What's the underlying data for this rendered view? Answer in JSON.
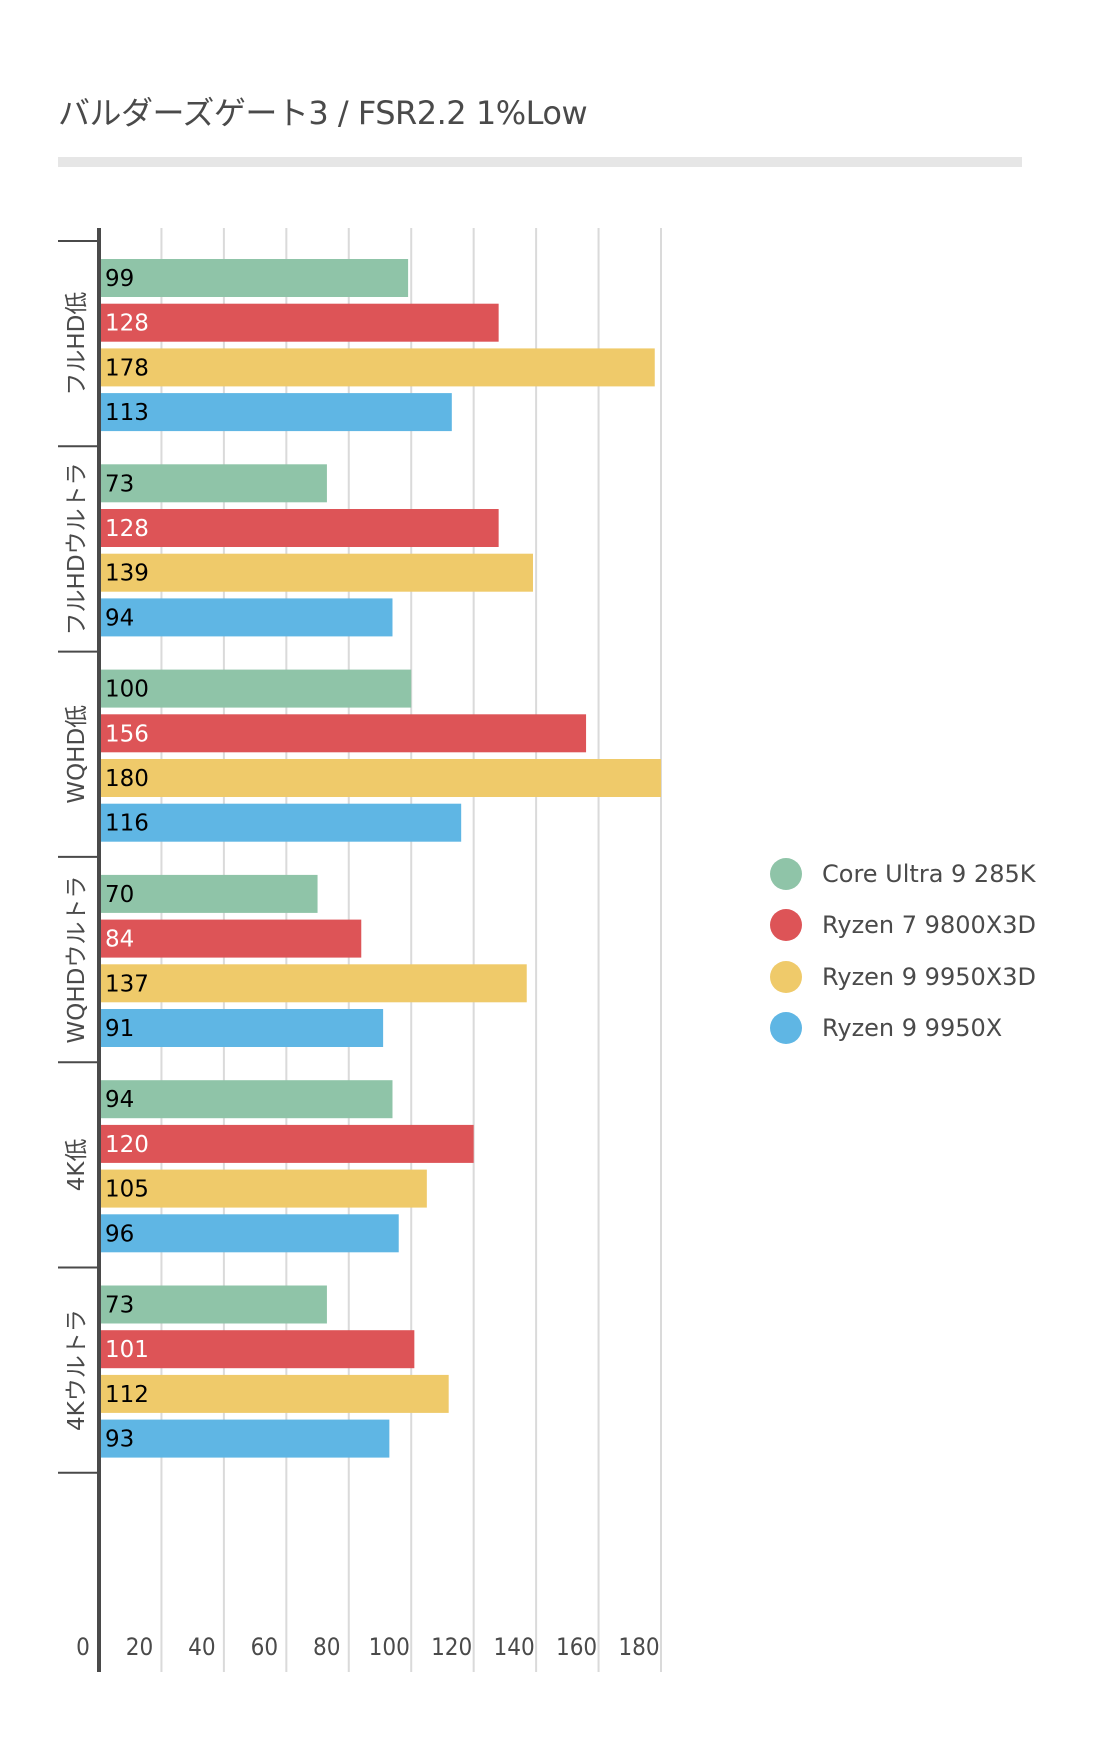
{
  "chart_data": {
    "type": "bar",
    "orientation": "horizontal",
    "title": "バルダーズゲート3 /  FSR2.2 1%Low",
    "xlabel": "",
    "ylabel": "",
    "xlim": [
      0,
      180
    ],
    "x_ticks": [
      0,
      20,
      40,
      60,
      80,
      100,
      120,
      140,
      160,
      180
    ],
    "grid": true,
    "legend_position": "right",
    "categories": [
      "フルHD低",
      "フルHDウルトラ",
      "WQHD低",
      "WQHDウルトラ",
      "4K低",
      "4Kウルトラ"
    ],
    "series": [
      {
        "name": "Core Ultra 9 285K",
        "color": "#8fc4a8",
        "label_color": "#000000",
        "values": [
          99,
          73,
          100,
          70,
          94,
          73
        ]
      },
      {
        "name": "Ryzen 7 9800X3D",
        "color": "#dd5457",
        "label_color": "#ffffff",
        "values": [
          128,
          128,
          156,
          84,
          120,
          101
        ]
      },
      {
        "name": "Ryzen 9 9950X3D",
        "color": "#efca6a",
        "label_color": "#000000",
        "values": [
          178,
          139,
          180,
          137,
          105,
          112
        ]
      },
      {
        "name": "Ryzen 9 9950X",
        "color": "#5fb6e4",
        "label_color": "#000000",
        "values": [
          113,
          94,
          116,
          91,
          96,
          93
        ]
      }
    ]
  }
}
